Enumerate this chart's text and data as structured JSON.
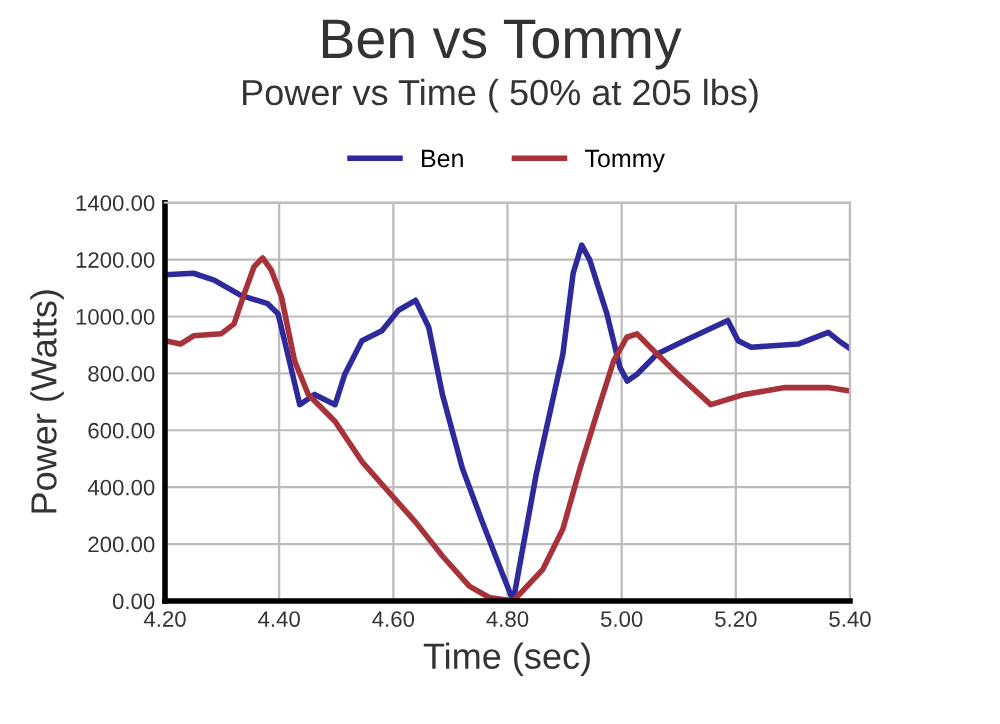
{
  "chart_data": {
    "type": "line",
    "title": "Ben vs Tommy",
    "subtitle": "Power vs Time ( 50% at 205 lbs)",
    "xlabel": "Time (sec)",
    "ylabel": "Power (Watts)",
    "xlim": [
      4.2,
      5.4
    ],
    "ylim": [
      0,
      1400
    ],
    "xticks": [
      {
        "value": 4.2,
        "label": "4.20"
      },
      {
        "value": 4.4,
        "label": "4.40"
      },
      {
        "value": 4.6,
        "label": "4.60"
      },
      {
        "value": 4.8,
        "label": "4.80"
      },
      {
        "value": 5.0,
        "label": "5.00"
      },
      {
        "value": 5.2,
        "label": "5.20"
      },
      {
        "value": 5.4,
        "label": "5.40"
      }
    ],
    "yticks": [
      {
        "value": 0,
        "label": "0.00"
      },
      {
        "value": 200,
        "label": "200.00"
      },
      {
        "value": 400,
        "label": "400.00"
      },
      {
        "value": 600,
        "label": "600.00"
      },
      {
        "value": 800,
        "label": "800.00"
      },
      {
        "value": 1000,
        "label": "1000.00"
      },
      {
        "value": 1200,
        "label": "1200.00"
      },
      {
        "value": 1400,
        "label": "1400.00"
      }
    ],
    "grid": true,
    "legend": "top",
    "marker": "none",
    "line_style": "solid",
    "series": [
      {
        "name": "Ben",
        "color": "#2e2a9c",
        "x": [
          4.2,
          4.25,
          4.286,
          4.333,
          4.38,
          4.398,
          4.415,
          4.436,
          4.462,
          4.498,
          4.515,
          4.545,
          4.58,
          4.609,
          4.639,
          4.662,
          4.686,
          4.721,
          4.756,
          4.788,
          4.81,
          4.85,
          4.897,
          4.915,
          4.93,
          4.944,
          4.974,
          4.997,
          5.01,
          5.027,
          5.062,
          5.11,
          5.186,
          5.204,
          5.227,
          5.309,
          5.362,
          5.38,
          5.4
        ],
        "values": [
          1147,
          1152,
          1128,
          1074,
          1045,
          1010,
          868,
          690,
          726,
          690,
          797,
          915,
          950,
          1022,
          1057,
          962,
          726,
          466,
          277,
          111,
          0,
          442,
          868,
          1152,
          1251,
          1199,
          1010,
          821,
          773,
          797,
          868,
          915,
          986,
          915,
          892,
          903,
          944,
          915,
          887
        ]
      },
      {
        "name": "Tommy",
        "color": "#a8323a",
        "x": [
          4.2,
          4.227,
          4.25,
          4.298,
          4.321,
          4.339,
          4.356,
          4.371,
          4.386,
          4.404,
          4.427,
          4.451,
          4.498,
          4.545,
          4.592,
          4.639,
          4.686,
          4.733,
          4.768,
          4.81,
          4.862,
          4.897,
          4.927,
          4.956,
          4.986,
          5.009,
          5.027,
          5.05,
          5.098,
          5.156,
          5.215,
          5.286,
          5.362,
          5.4
        ],
        "values": [
          915,
          903,
          932,
          939,
          974,
          1081,
          1175,
          1206,
          1164,
          1069,
          844,
          726,
          631,
          490,
          383,
          277,
          158,
          52,
          12,
          0,
          111,
          253,
          466,
          655,
          844,
          927,
          939,
          892,
          797,
          690,
          726,
          750,
          750,
          738
        ]
      }
    ]
  }
}
